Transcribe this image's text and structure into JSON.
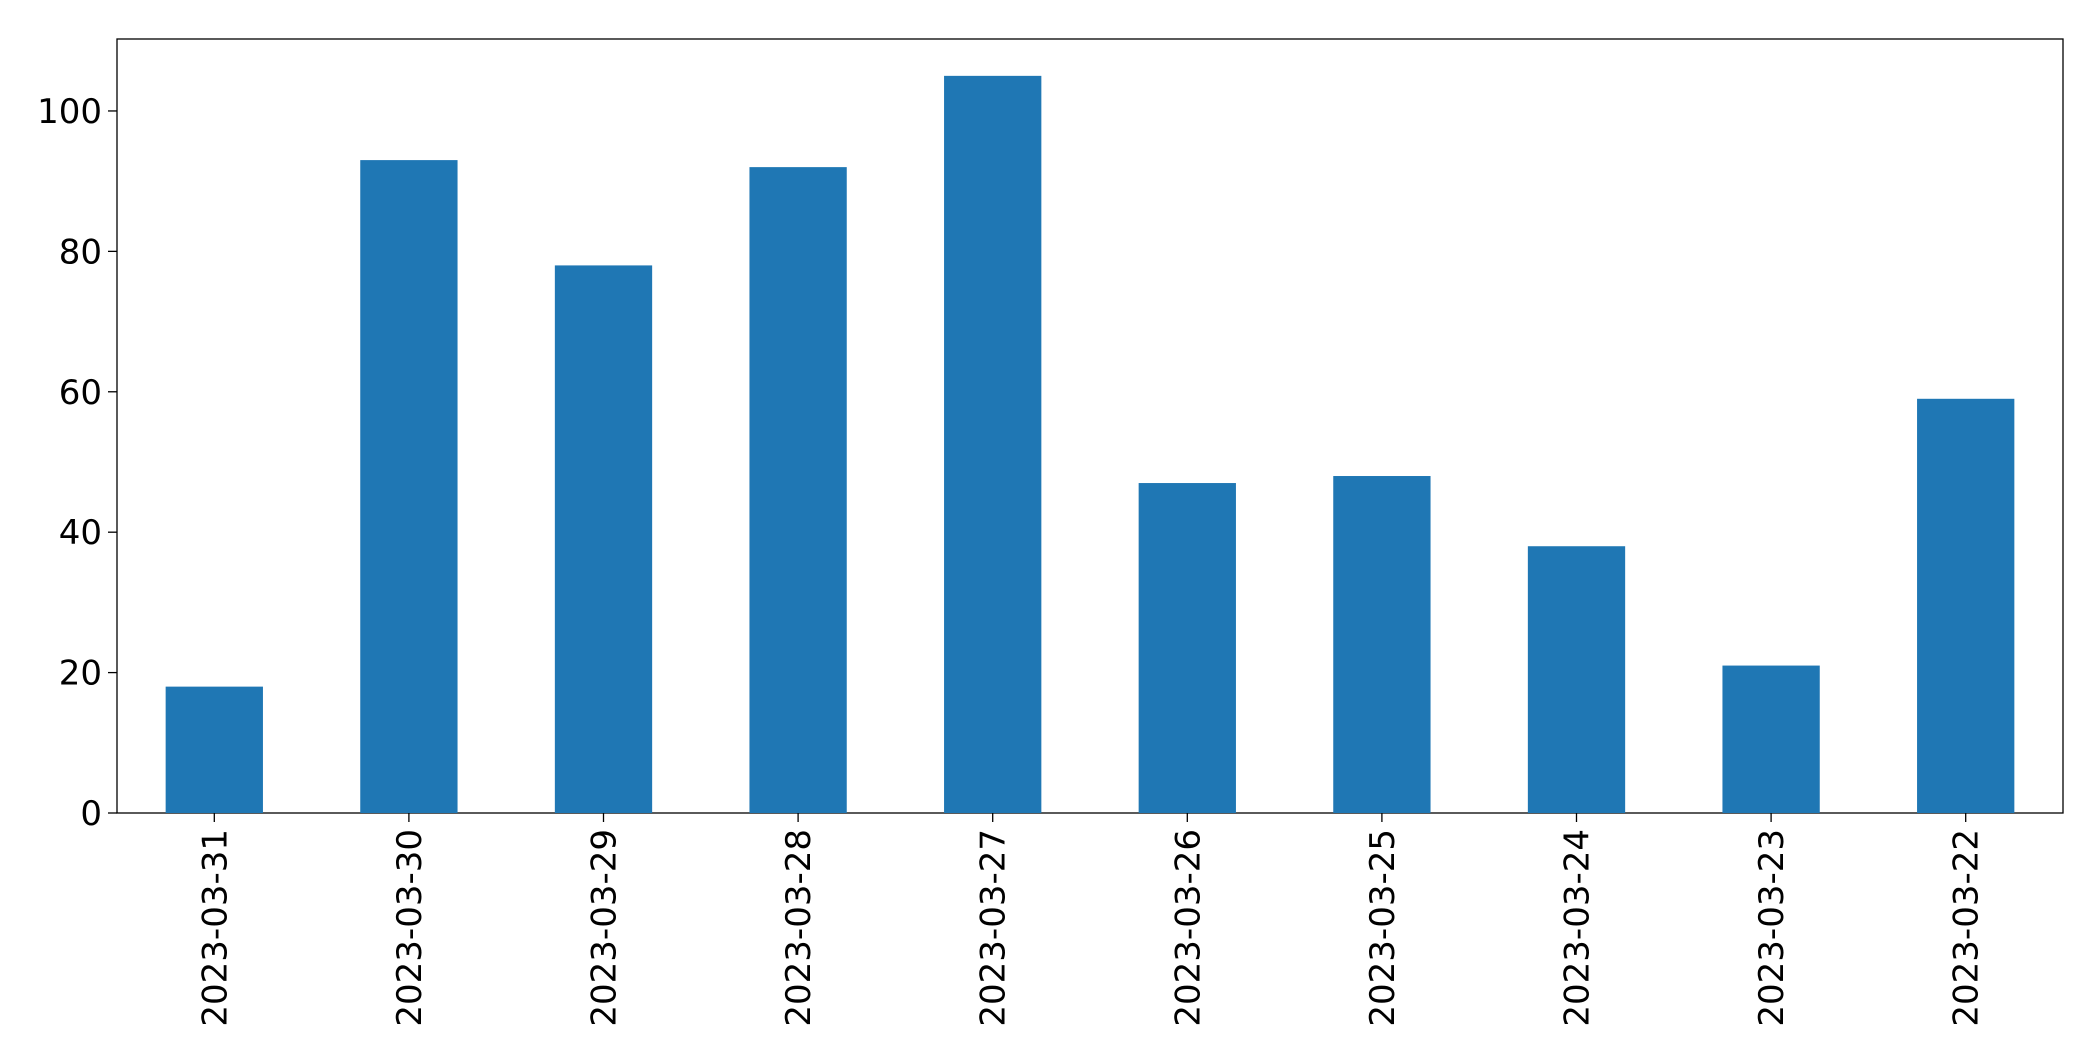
{
  "chart_data": {
    "type": "bar",
    "categories": [
      "2023-03-31",
      "2023-03-30",
      "2023-03-29",
      "2023-03-28",
      "2023-03-27",
      "2023-03-26",
      "2023-03-25",
      "2023-03-24",
      "2023-03-23",
      "2023-03-22"
    ],
    "values": [
      18,
      93,
      78,
      92,
      105,
      47,
      48,
      38,
      21,
      59
    ],
    "color": "#1f77b4",
    "ylim": [
      0,
      110.25
    ],
    "yticks": [
      0,
      20,
      40,
      60,
      80,
      100
    ],
    "grid": false
  }
}
